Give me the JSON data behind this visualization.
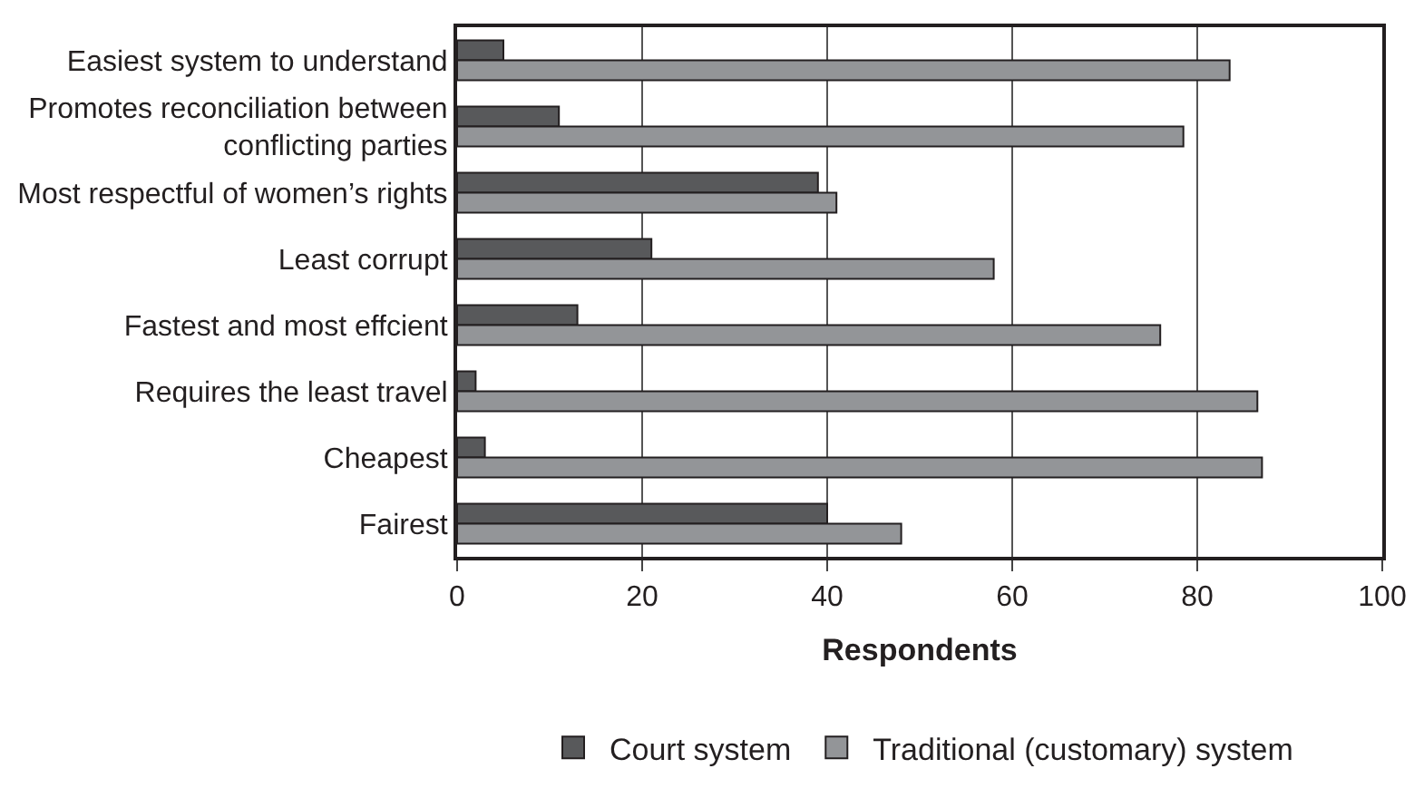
{
  "chart_data": {
    "type": "bar",
    "orientation": "horizontal",
    "xlabel": "Respondents",
    "categories": [
      "Easiest system to understand",
      "Promotes reconciliation between conflicting parties",
      "Most respectful of women’s rights",
      "Least corrupt",
      "Fastest and most effcient",
      "Requires the least travel",
      "Cheapest",
      "Fairest"
    ],
    "series": [
      {
        "name": "Court system",
        "color": "#58595b",
        "values": [
          5,
          11,
          39,
          21,
          13,
          2,
          3,
          40
        ]
      },
      {
        "name": "Traditional (customary) system",
        "color": "#939598",
        "values": [
          83.5,
          78.5,
          41,
          58,
          76,
          86.5,
          87,
          48
        ]
      }
    ],
    "xlim": [
      0,
      100
    ],
    "xticks": [
      0,
      20,
      40,
      60,
      80,
      100
    ],
    "grid": "x",
    "legend": "bottom"
  }
}
